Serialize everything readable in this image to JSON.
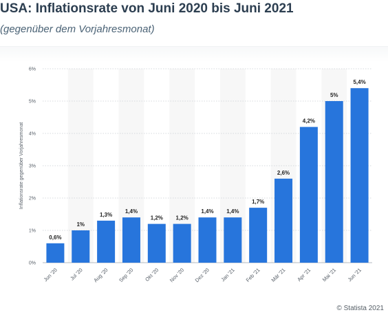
{
  "header": {
    "title": "USA: Inflationsrate von Juni 2020 bis Juni 2021",
    "subtitle": "(gegenüber dem Vorjahresmonat)"
  },
  "credit": "© Statista 2021",
  "colors": {
    "bar": "#2775dc",
    "band": "#f7f7f7",
    "grid": "#c9ced3",
    "title": "#2c3e50",
    "subtitle": "#4a6275"
  },
  "chart_data": {
    "type": "bar",
    "ylabel": "Inflationsrate gegenüber Vorjahresmonat",
    "xlabel": "",
    "ylim": [
      0,
      6
    ],
    "yticks": [
      0,
      1,
      2,
      3,
      4,
      5,
      6
    ],
    "ytick_labels": [
      "0%",
      "1%",
      "2%",
      "3%",
      "4%",
      "5%",
      "6%"
    ],
    "grid": "horizontal dotted",
    "legend": "none",
    "categories": [
      "Jun '20",
      "Jul '20",
      "Aug '20",
      "Sep '20",
      "Okt '20",
      "Nov '20",
      "Dez '20",
      "Jan '21",
      "Feb '21",
      "Mär '21",
      "Apr '21",
      "Mai '21",
      "Jun '21"
    ],
    "values": [
      0.6,
      1,
      1.3,
      1.4,
      1.2,
      1.2,
      1.4,
      1.4,
      1.7,
      2.6,
      4.2,
      5,
      5.4
    ],
    "data_labels": [
      "0,6%",
      "1%",
      "1,3%",
      "1,4%",
      "1,2%",
      "1,2%",
      "1,4%",
      "1,4%",
      "1,7%",
      "2,6%",
      "4,2%",
      "5%",
      "5,4%"
    ]
  }
}
